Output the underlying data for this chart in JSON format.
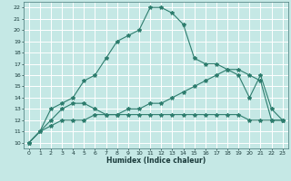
{
  "xlabel": "Humidex (Indice chaleur)",
  "background_color": "#c5e8e5",
  "grid_color": "#ffffff",
  "line_color": "#2e7d6e",
  "xlim": [
    -0.5,
    23.5
  ],
  "ylim": [
    9.5,
    22.5
  ],
  "xticks": [
    0,
    1,
    2,
    3,
    4,
    5,
    6,
    7,
    8,
    9,
    10,
    11,
    12,
    13,
    14,
    15,
    16,
    17,
    18,
    19,
    20,
    21,
    22,
    23
  ],
  "yticks": [
    10,
    11,
    12,
    13,
    14,
    15,
    16,
    17,
    18,
    19,
    20,
    21,
    22
  ],
  "series_peak_x": [
    0,
    1,
    2,
    3,
    4,
    5,
    6,
    7,
    8,
    9,
    10,
    11,
    12,
    13,
    14,
    15,
    16,
    17,
    18,
    19,
    20,
    21,
    22,
    23
  ],
  "series_peak_y": [
    10.0,
    11.0,
    13.0,
    13.5,
    14.0,
    15.5,
    16.0,
    17.5,
    19.0,
    19.5,
    20.0,
    22.0,
    22.0,
    21.5,
    20.5,
    17.5,
    17.0,
    17.0,
    16.5,
    16.0,
    14.0,
    16.0,
    13.0,
    12.0
  ],
  "series_diag_x": [
    0,
    1,
    2,
    3,
    4,
    5,
    6,
    7,
    8,
    9,
    10,
    11,
    12,
    13,
    14,
    15,
    16,
    17,
    18,
    19,
    20,
    21,
    22,
    23
  ],
  "series_diag_y": [
    10.0,
    11.0,
    11.5,
    12.0,
    12.0,
    12.0,
    12.5,
    12.5,
    12.5,
    13.0,
    13.0,
    13.5,
    13.5,
    14.0,
    14.5,
    15.0,
    15.5,
    16.0,
    16.5,
    16.5,
    16.0,
    15.5,
    12.0,
    12.0
  ],
  "series_low_x": [
    0,
    2,
    3,
    4,
    5,
    6,
    7,
    8,
    9,
    10,
    11,
    12,
    13,
    14,
    15,
    16,
    17,
    18,
    19,
    20,
    21,
    22,
    23
  ],
  "series_low_y": [
    10.0,
    12.0,
    13.0,
    13.5,
    13.5,
    13.0,
    12.5,
    12.5,
    12.5,
    12.5,
    12.5,
    12.5,
    12.5,
    12.5,
    12.5,
    12.5,
    12.5,
    12.5,
    12.5,
    12.0,
    12.0,
    12.0,
    12.0
  ]
}
